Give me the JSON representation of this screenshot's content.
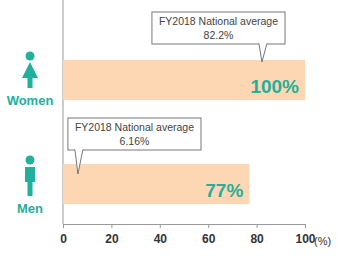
{
  "chart_data": {
    "type": "bar",
    "orientation": "horizontal",
    "categories": [
      "Women",
      "Men"
    ],
    "values": [
      100,
      77
    ],
    "value_labels": [
      "100%",
      "77%"
    ],
    "data_labels": true,
    "color": "#fdd7b3",
    "xlim": [
      0,
      100
    ],
    "xticks": [
      0,
      20,
      40,
      60,
      80,
      100
    ],
    "xlabel": "(%)",
    "grid": false,
    "annotations": [
      {
        "text": "FY2018 National average",
        "value": 82.2,
        "label": "82.2%"
      },
      {
        "text": "FY2018 National average",
        "value": 6.16,
        "label": "6.16%"
      }
    ]
  }
}
